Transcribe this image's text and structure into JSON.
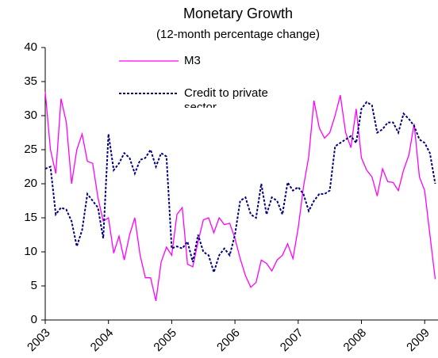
{
  "chart_data": {
    "type": "line",
    "title": "Monetary Growth",
    "subtitle": "(12-month percentage change)",
    "categories": [
      "2003",
      null,
      null,
      null,
      null,
      null,
      null,
      null,
      null,
      null,
      null,
      null,
      "2004",
      null,
      null,
      null,
      null,
      null,
      null,
      null,
      null,
      null,
      null,
      null,
      "2005",
      null,
      null,
      null,
      null,
      null,
      null,
      null,
      null,
      null,
      null,
      null,
      "2006",
      null,
      null,
      null,
      null,
      null,
      null,
      null,
      null,
      null,
      null,
      null,
      "2007",
      null,
      null,
      null,
      null,
      null,
      null,
      null,
      null,
      null,
      null,
      null,
      "2008",
      null,
      null,
      null,
      null,
      null,
      null,
      null,
      null,
      null,
      null,
      null,
      "2009",
      null,
      null
    ],
    "series": [
      {
        "name": "M3",
        "color": "#ff00ff",
        "style": "solid",
        "values": [
          33.5,
          25,
          21.5,
          32.5,
          29,
          20,
          25,
          27.3,
          23.3,
          23,
          18,
          14.5,
          15,
          9.8,
          12.3,
          8.8,
          12.5,
          15,
          9.5,
          6.2,
          6.2,
          2.8,
          8.5,
          10.7,
          9.5,
          15.5,
          16.5,
          8.2,
          7.8,
          11.5,
          14.7,
          15,
          12.8,
          15,
          14,
          14.2,
          12,
          9,
          6.5,
          4.8,
          5.5,
          8.8,
          8.3,
          7.2,
          8.8,
          9.5,
          11.2,
          9,
          13.5,
          19.5,
          24,
          32.2,
          28.2,
          26.7,
          27.5,
          30,
          33,
          27.5,
          25.3,
          31,
          23.8,
          22,
          21,
          18.2,
          22.2,
          20.3,
          20.2,
          19,
          22,
          24.2,
          28.8,
          21,
          19,
          12.5,
          6
        ]
      },
      {
        "name": "Credit to private sector",
        "color": "#000080",
        "style": "dashed",
        "values": [
          22.2,
          22.5,
          15.5,
          16.5,
          16.2,
          14.5,
          10.8,
          13.2,
          18.5,
          17.5,
          16.5,
          12,
          27.3,
          22,
          23,
          24.5,
          23.8,
          21.5,
          23.5,
          23.8,
          25,
          22.5,
          24.5,
          24,
          10.5,
          10.8,
          10.5,
          11.5,
          8.5,
          12.5,
          10,
          9.5,
          7,
          9.5,
          10.5,
          9.5,
          12.5,
          17.5,
          18,
          15.5,
          15,
          20,
          15.5,
          18,
          17.5,
          15.5,
          20.2,
          19,
          19.5,
          18.5,
          16,
          17.5,
          18.5,
          18.5,
          19,
          25.5,
          26,
          26.5,
          27,
          26,
          31,
          32,
          31.5,
          27.5,
          28,
          29,
          29,
          27.5,
          30.3,
          29.5,
          28.5,
          26.5,
          26,
          24.5,
          20
        ]
      }
    ],
    "ylim": [
      0,
      40
    ],
    "yticks": [
      0,
      5,
      10,
      15,
      20,
      25,
      30,
      35,
      40
    ],
    "grid": false
  }
}
